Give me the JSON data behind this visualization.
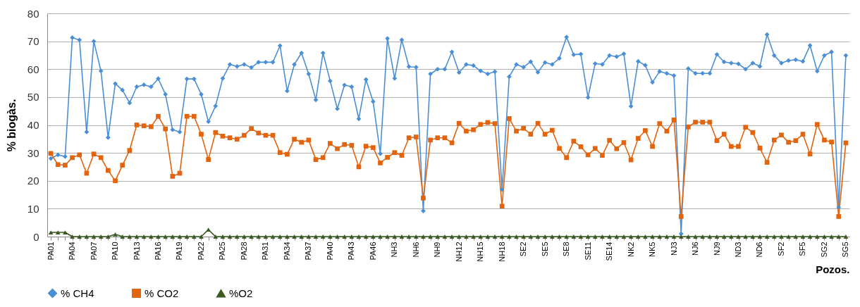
{
  "chart_data": {
    "type": "line",
    "ylabel": "% biogàs.",
    "xlabel": "Pozos.",
    "categories": [
      "PA01",
      null,
      null,
      "PA04",
      null,
      null,
      "PA07",
      null,
      null,
      "PA10",
      null,
      null,
      "PA13",
      null,
      null,
      "PA16",
      null,
      null,
      "PA19",
      null,
      null,
      "PA22",
      null,
      null,
      "PA25",
      null,
      null,
      "PA28",
      null,
      null,
      "PA31",
      null,
      null,
      "PA34",
      null,
      null,
      "PA37",
      null,
      null,
      "PA40",
      null,
      null,
      "PA43",
      null,
      null,
      "PA46",
      null,
      null,
      "NH3",
      null,
      null,
      "NH6",
      null,
      null,
      "NH9",
      null,
      null,
      "NH12",
      null,
      null,
      "NH15",
      null,
      null,
      "NH18",
      null,
      null,
      "SE2",
      null,
      null,
      "SE5",
      null,
      null,
      "SE8",
      null,
      null,
      "SE11",
      null,
      null,
      "SE14",
      null,
      null,
      "NK2",
      null,
      null,
      "NK5",
      null,
      null,
      "NJ3",
      null,
      null,
      "NJ6",
      null,
      null,
      "NJ9",
      null,
      null,
      "ND3",
      null,
      null,
      "ND6",
      null,
      null,
      "SF2",
      null,
      null,
      "SF5",
      null,
      null,
      "SG2",
      null,
      null,
      "SG5"
    ],
    "series": [
      {
        "name": "% CH4",
        "color": "#4a8fd6",
        "marker": "diamond",
        "values": [
          28,
          29.3,
          28.7,
          71.3,
          70.5,
          37.5,
          70,
          59.4,
          35.5,
          54.8,
          52.5,
          47.9,
          53.7,
          54.4,
          53.7,
          56.6,
          51,
          38.3,
          37.5,
          56.5,
          56.5,
          51,
          41.2,
          46.8,
          56.7,
          61.7,
          61,
          61.7,
          60.6,
          62.5,
          62.5,
          62.5,
          68.4,
          52.2,
          61.7,
          65.8,
          58.3,
          49,
          65.8,
          55.8,
          45.8,
          54.3,
          53.7,
          42.2,
          56.3,
          48.4,
          29.7,
          71,
          56.7,
          70.5,
          60.9,
          60.7,
          9.2,
          58.3,
          60,
          60,
          66.2,
          58.8,
          61.7,
          61.3,
          59.4,
          58.3,
          59.1,
          16.9,
          57.3,
          61.7,
          60.7,
          62.7,
          58.9,
          62.4,
          61.7,
          63.9,
          71.5,
          65.2,
          65.4,
          49.9,
          62,
          61.7,
          64.9,
          64.5,
          65.5,
          46.7,
          62.8,
          61.4,
          55.3,
          59.2,
          58.5,
          57.7,
          1,
          60.2,
          58.5,
          58.5,
          58.5,
          65.3,
          62.6,
          62.2,
          61.9,
          60,
          62.2,
          61,
          72.4,
          64.9,
          62.2,
          63.1,
          63.4,
          62.8,
          68.5,
          59.3,
          64.9,
          66.2,
          10.5,
          64.9
        ]
      },
      {
        "name": "% CO2",
        "color": "#e2640e",
        "marker": "square",
        "values": [
          29.8,
          25.8,
          25.6,
          28.3,
          29.3,
          22.7,
          29.6,
          28.3,
          23.7,
          20,
          25.6,
          30.9,
          40,
          39.7,
          39.4,
          43.1,
          38.6,
          21.6,
          22.7,
          43.1,
          43.1,
          36.7,
          27.6,
          37.3,
          36,
          35.4,
          34.9,
          36.3,
          38.7,
          37.1,
          36.3,
          36.3,
          30.1,
          29.5,
          34.9,
          33.8,
          34.6,
          27.6,
          28.3,
          33.4,
          31.5,
          33,
          32.7,
          25,
          32.4,
          31.9,
          26.4,
          28.4,
          30.1,
          29.1,
          35.4,
          35.7,
          13.8,
          34.6,
          35.4,
          35.4,
          33.6,
          40.6,
          37.8,
          38.3,
          40.2,
          40.9,
          40.5,
          10.9,
          42.3,
          37.8,
          38.8,
          36.7,
          40.6,
          36.7,
          38.1,
          31.6,
          28.3,
          34.2,
          32.2,
          29.3,
          31.6,
          29.1,
          34.5,
          31.5,
          33.7,
          27.5,
          35.2,
          38,
          32.3,
          40.5,
          37.8,
          41.8,
          7.2,
          39.3,
          41,
          41,
          41,
          34.4,
          36.7,
          32.3,
          32.3,
          39.2,
          37.3,
          31.7,
          26.6,
          34.6,
          36.4,
          33.8,
          34.4,
          36.7,
          29.6,
          40.2,
          34.6,
          33.9,
          7.2,
          33.6
        ]
      },
      {
        "name": "%O2",
        "color": "#3a5a22",
        "marker": "triangle",
        "values": [
          1.5,
          1.5,
          1.5,
          0,
          0,
          0,
          0,
          0,
          0,
          0.8,
          0,
          0,
          0,
          0,
          0,
          0,
          0,
          0,
          0,
          0,
          0,
          0,
          2.5,
          0,
          0,
          0,
          0,
          0,
          0,
          0,
          0,
          0,
          0,
          0,
          0,
          0,
          0,
          0,
          0,
          0,
          0,
          0,
          0,
          0,
          0,
          0,
          0,
          0,
          0,
          0,
          0,
          0,
          0,
          0,
          0,
          0,
          0,
          0,
          0,
          0,
          0,
          0,
          0,
          0,
          0,
          0,
          0,
          0,
          0,
          0,
          0,
          0,
          0,
          0,
          0,
          0,
          0,
          0,
          0,
          0,
          0,
          0,
          0,
          0,
          0,
          0,
          0,
          0,
          0,
          0,
          0,
          0,
          0,
          0,
          0,
          0,
          0,
          0,
          0,
          0,
          0,
          0,
          0,
          0,
          0,
          0,
          0,
          0,
          0,
          0,
          0,
          0
        ]
      }
    ],
    "ylim": [
      0,
      80
    ],
    "yticks": [
      0,
      10,
      20,
      30,
      40,
      50,
      60,
      70,
      80
    ],
    "grid": "y",
    "legend": "bottom"
  }
}
